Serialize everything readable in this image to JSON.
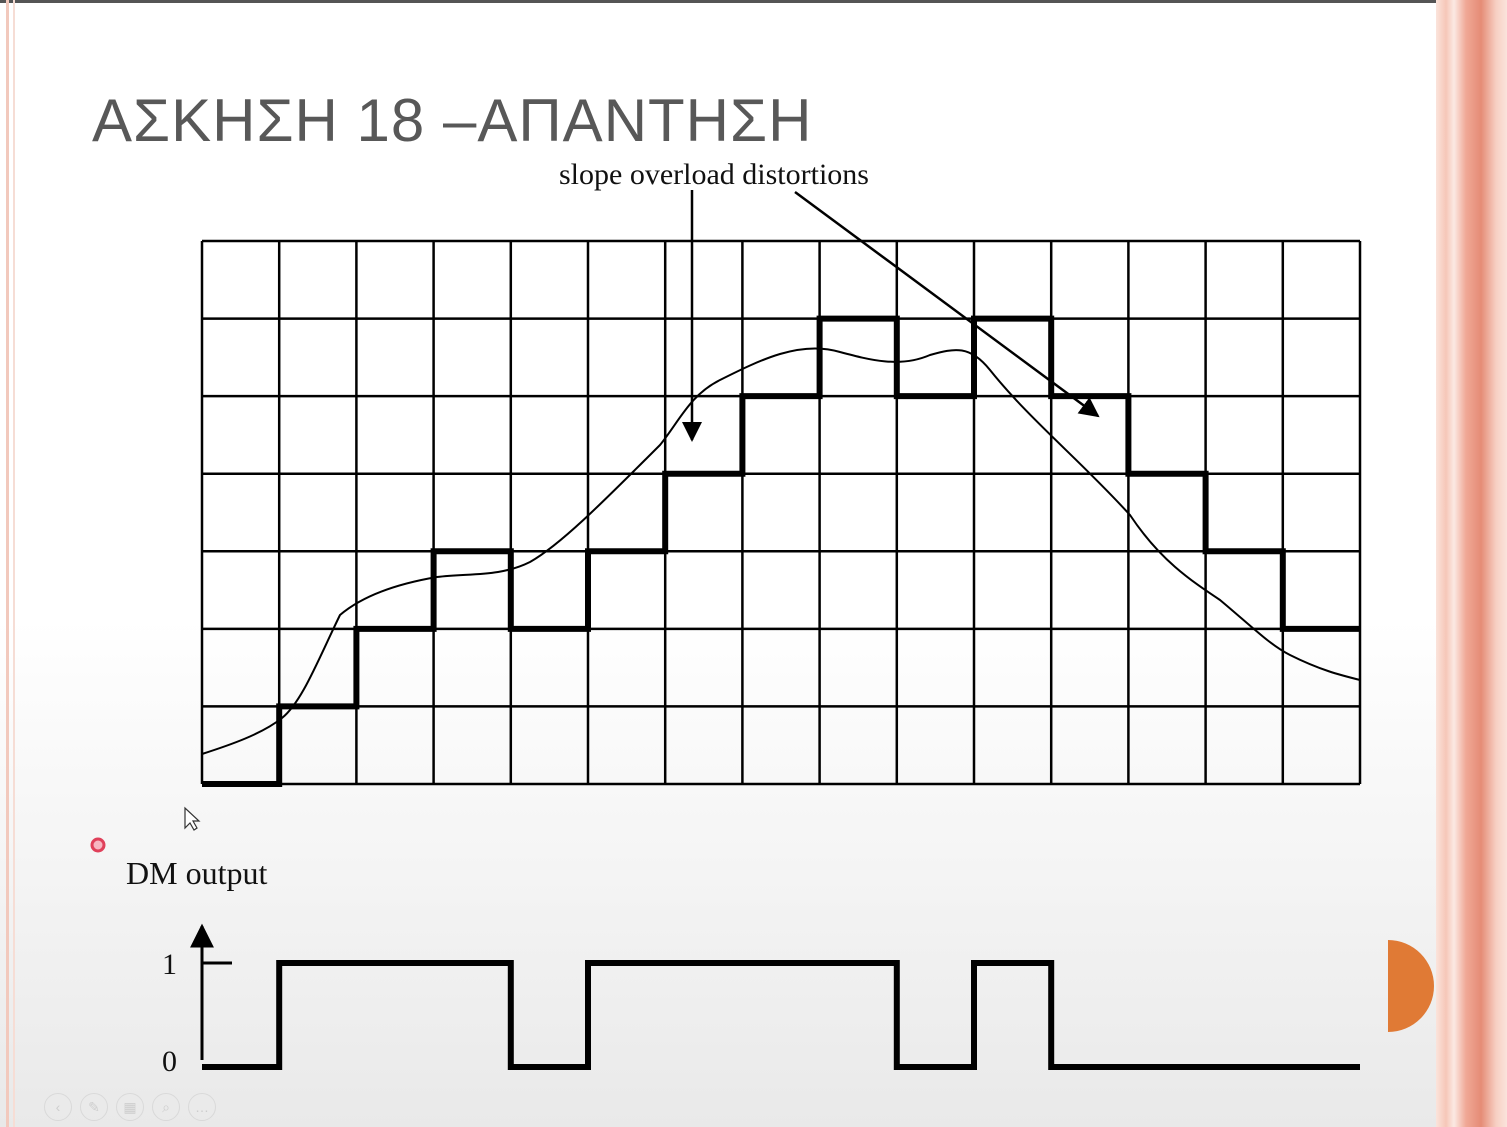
{
  "slide": {
    "title": "ΑΣΚΗΣΗ 18 –ΑΠΑΝΤΗΣΗ",
    "annotation": "slope overload distortions",
    "dm_label": "DM output",
    "tick_labels": {
      "one": "1",
      "zero": "0"
    }
  },
  "staircase_levels": [
    0,
    1,
    2,
    3,
    2,
    3,
    4,
    5,
    6,
    5,
    6,
    5,
    4,
    3,
    2
  ],
  "dm_output_bits": [
    0,
    1,
    1,
    1,
    0,
    1,
    1,
    1,
    1,
    0,
    1,
    0,
    0,
    0,
    0
  ],
  "colors": {
    "title": "#585858",
    "lines": "#000000",
    "right_band_accent": "#e58c76",
    "half_circle": "#e07a35",
    "bullet": "#e0405a"
  },
  "icons": {
    "toolbar": [
      "prev-icon",
      "pen-icon",
      "slides-icon",
      "zoom-icon",
      "more-icon"
    ]
  }
}
